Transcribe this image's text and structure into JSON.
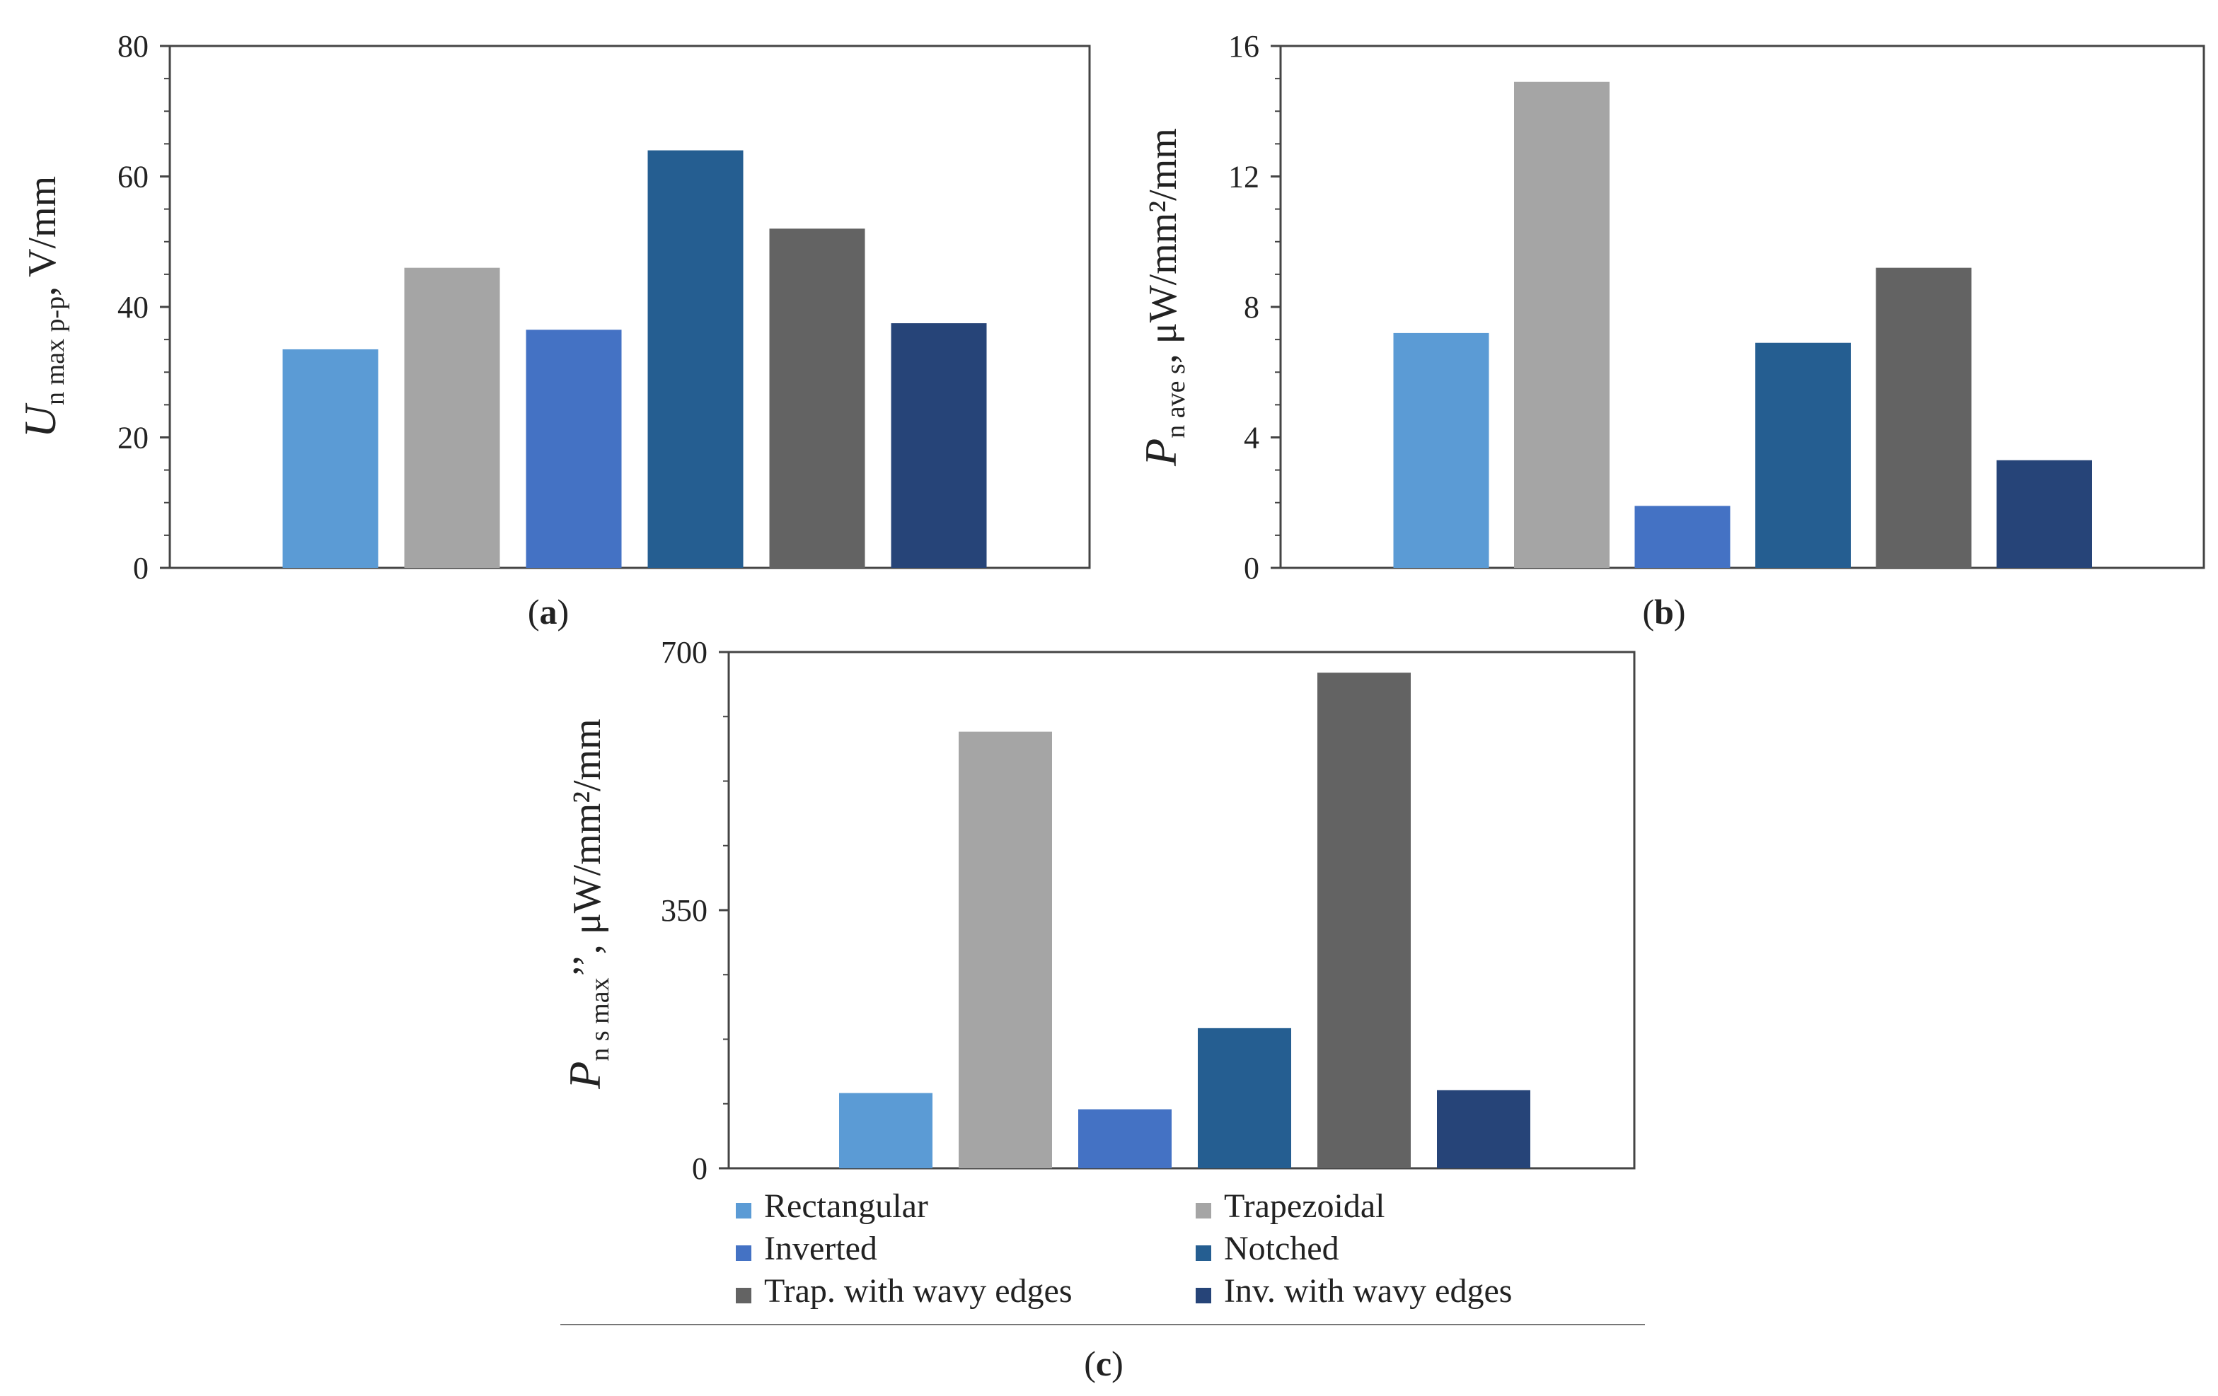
{
  "colors": {
    "Rectangular": "#5b9bd5",
    "Trapezoidal": "#a5a5a5",
    "Inverted": "#4472c4",
    "Notched": "#255e91",
    "Trap. with wavy edges": "#636363",
    "Inv. with wavy edges": "#264478"
  },
  "chart_data": [
    {
      "type": "bar",
      "panel": "a",
      "caption": {
        "open": "(",
        "letter": "a",
        "close": ")"
      },
      "ylabel": {
        "symbol": "U",
        "subscript": "n max p-p",
        "unit": ", V/mm"
      },
      "ylim": [
        0,
        80
      ],
      "yticks": [
        "0",
        "20",
        "40",
        "60",
        "80"
      ],
      "categories": [
        "Rectangular",
        "Trapezoidal",
        "Inverted",
        "Notched",
        "Trap. with wavy edges",
        "Inv. with wavy edges"
      ],
      "values": [
        33.5,
        46,
        36.5,
        64,
        52,
        37.5
      ]
    },
    {
      "type": "bar",
      "panel": "b",
      "caption": {
        "open": "(",
        "letter": "b",
        "close": ")"
      },
      "ylabel": {
        "symbol": "P",
        "subscript": "n ave s",
        "unit": ", μW/mm²/mm"
      },
      "ylim": [
        0,
        16
      ],
      "yticks": [
        "0",
        "4",
        "8",
        "12",
        "16"
      ],
      "categories": [
        "Rectangular",
        "Trapezoidal",
        "Inverted",
        "Notched",
        "Trap. with wavy edges",
        "Inv. with wavy edges"
      ],
      "values": [
        7.2,
        14.9,
        1.9,
        6.9,
        9.2,
        3.3
      ]
    },
    {
      "type": "bar",
      "panel": "c",
      "caption": {
        "open": "(",
        "letter": "c",
        "close": ")"
      },
      "ylabel": {
        "symbol": "P",
        "subscript": "n s max",
        "unit": "’’, μW/mm²/mm"
      },
      "ylim": [
        0,
        700
      ],
      "yticks": [
        "0",
        "350",
        "700"
      ],
      "categories": [
        "Rectangular",
        "Trapezoidal",
        "Inverted",
        "Notched",
        "Trap. with wavy edges",
        "Inv. with wavy edges"
      ],
      "values": [
        102,
        592,
        80,
        190,
        672,
        106
      ]
    }
  ],
  "legend": {
    "position": "bottom",
    "items": [
      "Rectangular",
      "Trapezoidal",
      "Inverted",
      "Notched",
      "Trap. with wavy edges",
      "Inv. with wavy edges"
    ]
  }
}
